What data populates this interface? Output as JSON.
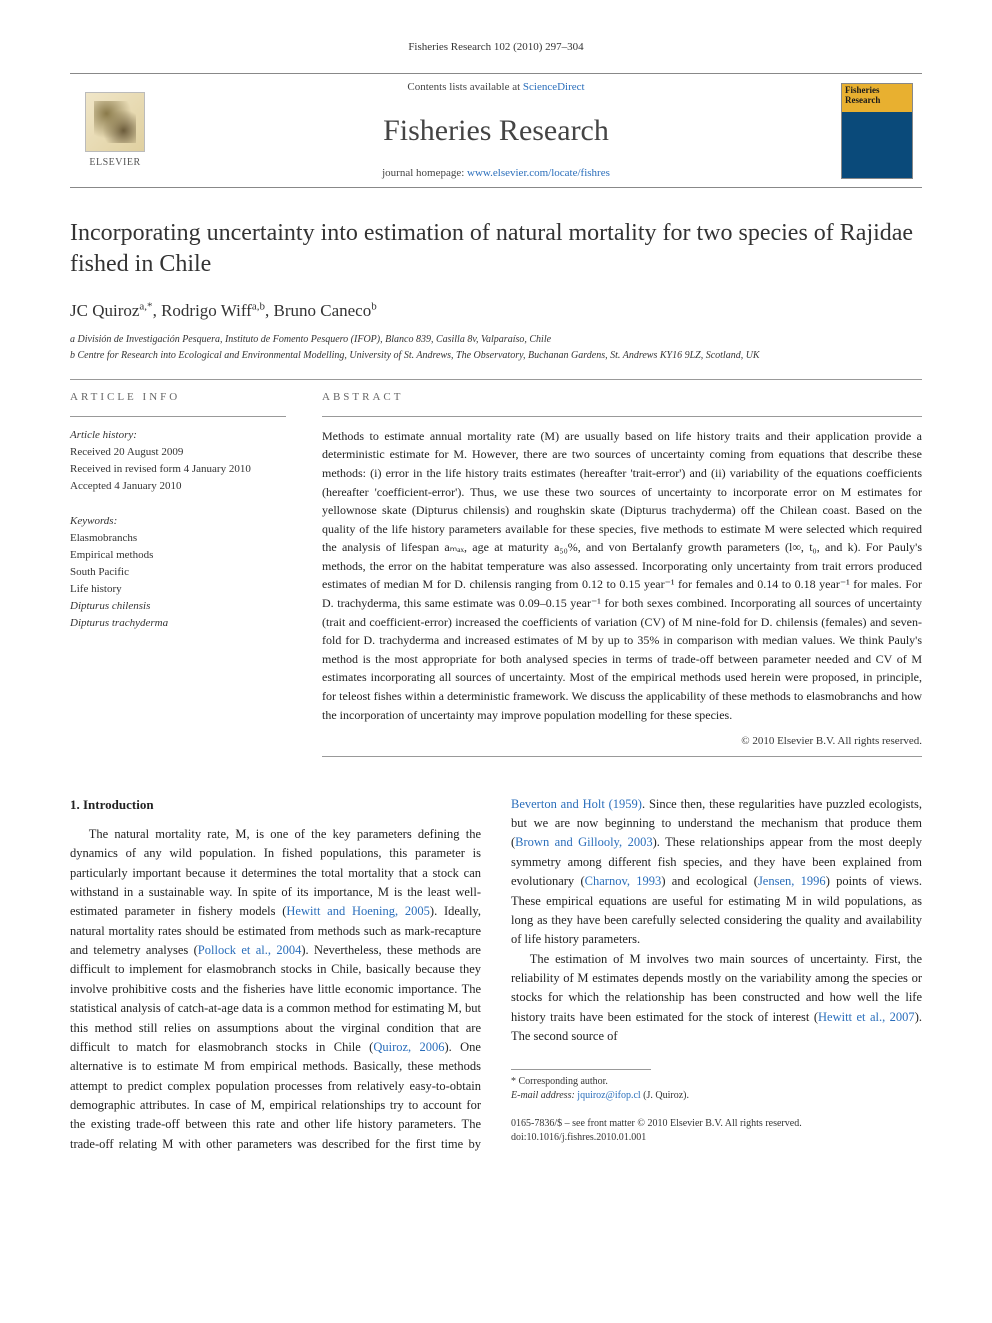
{
  "running_head": "Fisheries Research 102 (2010) 297–304",
  "masthead": {
    "contents_prefix": "Contents lists available at ",
    "contents_link": "ScienceDirect",
    "journal_name": "Fisheries Research",
    "homepage_prefix": "journal homepage: ",
    "homepage_link": "www.elsevier.com/locate/fishres",
    "publisher_name": "ELSEVIER"
  },
  "title": "Incorporating uncertainty into estimation of natural mortality for two species of Rajidae fished in Chile",
  "authors": "JC Quiroz",
  "authors_sup1": "a,*",
  "authors_2": ", Rodrigo Wiff",
  "authors_sup2": "a,b",
  "authors_3": ", Bruno Caneco",
  "authors_sup3": "b",
  "affiliations": {
    "a": "a División de Investigación Pesquera, Instituto de Fomento Pesquero (IFOP), Blanco 839, Casilla 8v, Valparaíso, Chile",
    "b": "b Centre for Research into Ecological and Environmental Modelling, University of St. Andrews, The Observatory, Buchanan Gardens, St. Andrews KY16 9LZ, Scotland, UK"
  },
  "article_info_head": "ARTICLE INFO",
  "abstract_head": "ABSTRACT",
  "history": {
    "label": "Article history:",
    "received": "Received 20 August 2009",
    "revised": "Received in revised form 4 January 2010",
    "accepted": "Accepted 4 January 2010"
  },
  "keywords": {
    "label": "Keywords:",
    "items": [
      {
        "text": "Elasmobranchs",
        "ital": false
      },
      {
        "text": "Empirical methods",
        "ital": false
      },
      {
        "text": "South Pacific",
        "ital": false
      },
      {
        "text": "Life history",
        "ital": false
      },
      {
        "text": "Dipturus chilensis",
        "ital": true
      },
      {
        "text": "Dipturus trachyderma",
        "ital": true
      }
    ]
  },
  "abstract": "Methods to estimate annual mortality rate (M) are usually based on life history traits and their application provide a deterministic estimate for M. However, there are two sources of uncertainty coming from equations that describe these methods: (i) error in the life history traits estimates (hereafter 'trait-error') and (ii) variability of the equations coefficients (hereafter 'coefficient-error'). Thus, we use these two sources of uncertainty to incorporate error on M estimates for yellownose skate (Dipturus chilensis) and roughskin skate (Dipturus trachyderma) off the Chilean coast. Based on the quality of the life history parameters available for these species, five methods to estimate M were selected which required the analysis of lifespan aₘₐₓ, age at maturity a₅₀%, and von Bertalanfy growth parameters (l∞, t₀, and k). For Pauly's methods, the error on the habitat temperature was also assessed. Incorporating only uncertainty from trait errors produced estimates of median M for D. chilensis ranging from 0.12 to 0.15 year⁻¹ for females and 0.14 to 0.18 year⁻¹ for males. For D. trachyderma, this same estimate was 0.09–0.15 year⁻¹ for both sexes combined. Incorporating all sources of uncertainty (trait and coefficient-error) increased the coefficients of variation (CV) of M nine-fold for D. chilensis (females) and seven-fold for D. trachyderma and increased estimates of M by up to 35% in comparison with median values. We think Pauly's method is the most appropriate for both analysed species in terms of trade-off between parameter needed and CV of M estimates incorporating all sources of uncertainty. Most of the empirical methods used herein were proposed, in principle, for teleost fishes within a deterministic framework. We discuss the applicability of these methods to elasmobranchs and how the incorporation of uncertainty may improve population modelling for these species.",
  "copyright": "© 2010 Elsevier B.V. All rights reserved.",
  "intro_head": "1. Introduction",
  "intro_p1_a": "The natural mortality rate, M, is one of the key parameters defining the dynamics of any wild population. In fished populations, this parameter is particularly important because it determines the total mortality that a stock can withstand in a sustainable way. In spite of its importance, M is the least well-estimated parameter in fishery models (",
  "intro_p1_c1": "Hewitt and Hoening, 2005",
  "intro_p1_b": "). Ideally, natural mortality rates should be estimated from methods such as mark-recapture and telemetry analyses (",
  "intro_p1_c2": "Pollock et al., 2004",
  "intro_p1_c": "). Nevertheless, these methods are difficult to implement for elasmobranch stocks in Chile, basically because they involve prohibitive costs and the fisheries have little economic importance. The statistical analysis of catch-at-age data is a common method for estimating M, but this method still relies on assumptions about the virginal condition that are difficult to match for elasmobranch stocks in Chile (",
  "intro_p1_c3": "Quiroz, 2006",
  "intro_p1_d": "). One alternative is to estimate M from empirical methods. Basically, these methods attempt to predict complex population processes from relatively easy-to-obtain demographic attributes. In case of M, empirical relationships try to account for the existing trade-off between this rate and other life history parameters. The trade-off relating M with other parameters was described for the first time by ",
  "intro_p1_c4": "Beverton and Holt (1959)",
  "intro_p1_e": ". Since then, these regularities have puzzled ecologists, but we are now beginning to understand the mechanism that produce them (",
  "intro_p1_c5": "Brown and Gillooly, 2003",
  "intro_p1_f": "). These relationships appear from the most deeply symmetry among different fish species, and they have been explained from evolutionary (",
  "intro_p1_c6": "Charnov, 1993",
  "intro_p1_g": ") and ecological (",
  "intro_p1_c7": "Jensen, 1996",
  "intro_p1_h": ") points of views. These empirical equations are useful for estimating M in wild populations, as long as they have been carefully selected considering the quality and availability of life history parameters.",
  "intro_p2_a": "The estimation of M involves two main sources of uncertainty. First, the reliability of M estimates depends mostly on the variability among the species or stocks for which the relationship has been constructed and how well the life history traits have been estimated for the stock of interest (",
  "intro_p2_c1": "Hewitt et al., 2007",
  "intro_p2_b": "). The second source of",
  "footnote": {
    "corr": "* Corresponding author.",
    "email_label": "E-mail address: ",
    "email": "jquiroz@ifop.cl",
    "email_tail": " (J. Quiroz)."
  },
  "bottom": {
    "l1": "0165-7836/$ – see front matter © 2010 Elsevier B.V. All rights reserved.",
    "l2": "doi:10.1016/j.fishres.2010.01.001"
  },
  "colors": {
    "link": "#2a6ebb",
    "text": "#222222",
    "rule": "#999999"
  }
}
